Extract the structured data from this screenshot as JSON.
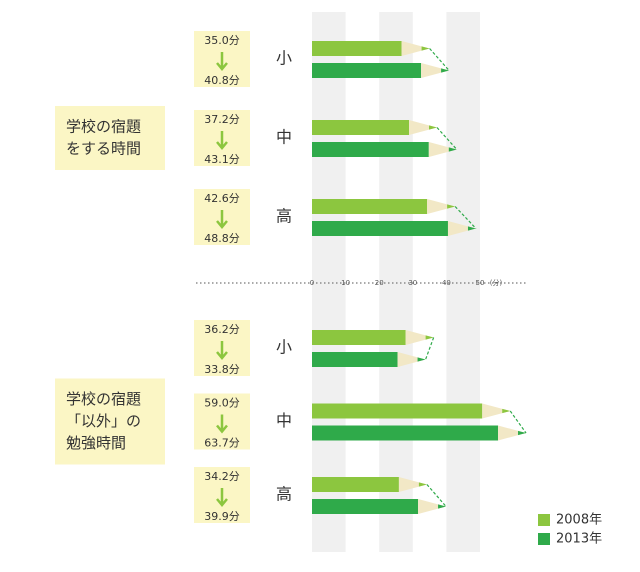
{
  "chart_data": {
    "type": "bar",
    "xlim": [
      0,
      50
    ],
    "xticks": [
      0,
      10,
      20,
      30,
      40,
      50
    ],
    "x_unit": "(分)",
    "series": [
      {
        "name": "2008年",
        "color": "#8cc63f"
      },
      {
        "name": "2013年",
        "color": "#2faa4a"
      }
    ],
    "groups": [
      {
        "label": [
          "学校の宿題",
          "をする時間"
        ],
        "categories": [
          "小",
          "中",
          "高"
        ],
        "series": [
          {
            "values": [
              35.0,
              37.2,
              42.6
            ],
            "value_labels": [
              "35.0分",
              "37.2分",
              "42.6分"
            ]
          },
          {
            "values": [
              40.8,
              43.1,
              48.8
            ],
            "value_labels": [
              "40.8分",
              "43.1分",
              "48.8分"
            ]
          }
        ]
      },
      {
        "label": [
          "学校の宿題",
          "「以外」の",
          "勉強時間"
        ],
        "categories": [
          "小",
          "中",
          "高"
        ],
        "series": [
          {
            "values": [
              36.2,
              59.0,
              34.2
            ],
            "value_labels": [
              "36.2分",
              "59.0分",
              "34.2分"
            ]
          },
          {
            "values": [
              33.8,
              63.7,
              39.9
            ],
            "value_labels": [
              "33.8分",
              "63.7分",
              "39.9分"
            ]
          }
        ]
      }
    ]
  }
}
